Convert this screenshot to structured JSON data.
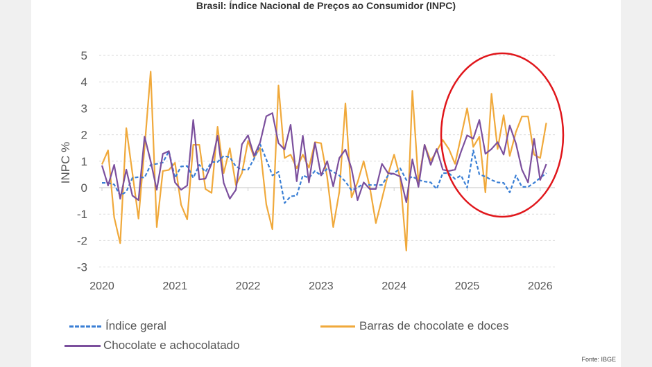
{
  "chart_data": {
    "type": "line",
    "title": "Brasil: Índice Nacional de Preços ao Consumidor (INPC)",
    "xlabel": "",
    "ylabel": "INPC %",
    "ylim": [
      -3,
      5
    ],
    "yticks": [
      "-3",
      "-2",
      "-1",
      "0",
      "1",
      "2",
      "3",
      "4",
      "5"
    ],
    "xticks": [
      "2020",
      "2021",
      "2022",
      "2023",
      "2024",
      "2025",
      "2026"
    ],
    "x_start": "2020-01",
    "x_frequency": "monthly",
    "grid": true,
    "legend_position": "bottom",
    "series": [
      {
        "name": "Índice geral",
        "color": "#3a7fd5",
        "style": "dashed",
        "values": [
          0.18,
          0.18,
          0.12,
          -0.3,
          -0.15,
          0.37,
          0.4,
          0.38,
          0.86,
          0.9,
          0.95,
          1.38,
          0.37,
          0.8,
          0.82,
          0.37,
          0.86,
          0.6,
          0.97,
          0.97,
          1.2,
          1.15,
          0.8,
          0.68,
          0.68,
          1.1,
          1.64,
          1.07,
          0.46,
          0.6,
          -0.58,
          -0.33,
          -0.3,
          0.46,
          0.37,
          0.63,
          0.46,
          0.72,
          0.6,
          0.46,
          0.23,
          -0.1,
          0.0,
          0.16,
          0.1,
          0.1,
          0.1,
          0.46,
          0.55,
          0.73,
          0.29,
          0.42,
          0.29,
          0.23,
          0.2,
          -0.05,
          0.55,
          0.55,
          0.33,
          0.46,
          0.0,
          1.41,
          0.5,
          0.42,
          0.29,
          0.2,
          0.18,
          -0.18,
          0.46,
          0.03,
          0.03,
          0.18,
          0.37,
          0.55
        ]
      },
      {
        "name": "Barras de chocolate e doces",
        "color": "#f0a93b",
        "style": "solid",
        "values": [
          0.88,
          1.41,
          -1.12,
          -2.1,
          2.25,
          0.55,
          -1.17,
          1.5,
          4.39,
          -1.49,
          0.63,
          0.67,
          0.94,
          -0.65,
          -1.2,
          1.62,
          1.62,
          -0.05,
          -0.2,
          2.3,
          0.55,
          1.49,
          0.1,
          0.55,
          1.77,
          1.15,
          1.5,
          -0.63,
          -1.57,
          3.86,
          1.12,
          1.25,
          0.73,
          1.25,
          0.75,
          1.72,
          1.68,
          0.4,
          -1.49,
          -0.16,
          3.18,
          -0.37,
          0.2,
          1.0,
          0.03,
          -1.34,
          -0.42,
          0.5,
          1.25,
          0.37,
          -2.38,
          3.66,
          0.2,
          1.62,
          1.02,
          1.38,
          1.8,
          1.46,
          0.9,
          1.93,
          3.0,
          1.54,
          1.93,
          -0.18,
          3.55,
          1.46,
          2.74,
          1.2,
          2.1,
          2.69,
          2.69,
          1.25,
          1.12,
          2.45
        ]
      },
      {
        "name": "Chocolate e achocolatado",
        "color": "#7b4f9d",
        "style": "solid",
        "values": [
          0.84,
          0.08,
          0.86,
          -0.42,
          0.68,
          -0.3,
          -0.47,
          1.93,
          1.0,
          -0.08,
          1.28,
          1.38,
          0.2,
          -0.08,
          0.08,
          2.56,
          0.31,
          0.34,
          0.9,
          1.96,
          0.18,
          -0.42,
          -0.08,
          1.64,
          1.98,
          1.2,
          1.72,
          2.7,
          2.82,
          1.68,
          1.44,
          2.38,
          0.24,
          1.96,
          0.2,
          1.7,
          0.46,
          1.0,
          0.05,
          1.12,
          1.44,
          0.72,
          -0.47,
          0.2,
          -0.05,
          -0.05,
          0.9,
          0.55,
          0.52,
          0.42,
          -0.55,
          1.07,
          0.03,
          1.62,
          0.86,
          1.46,
          0.68,
          0.63,
          0.68,
          1.36,
          1.98,
          1.85,
          2.56,
          1.28,
          1.46,
          1.72,
          1.25,
          2.35,
          1.68,
          0.68,
          0.2,
          1.85,
          0.29,
          0.89
        ]
      }
    ],
    "annotation": {
      "shape": "ellipse",
      "color": "#e0161b",
      "highlights": "2025-2026"
    },
    "source": "Fonte: IBGE"
  }
}
